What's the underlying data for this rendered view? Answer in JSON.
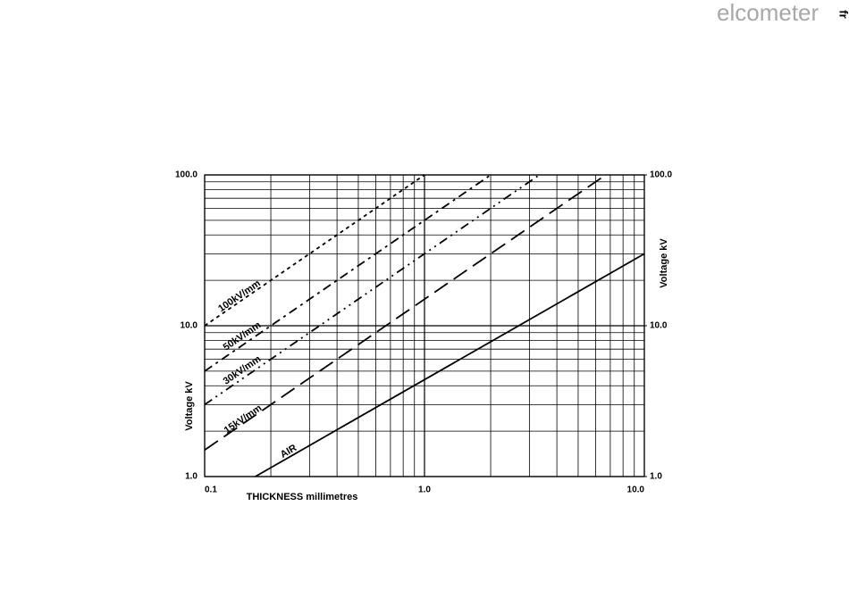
{
  "logo": "elcometer",
  "corner_label": "fr",
  "chart_data": {
    "type": "line",
    "log_x": true,
    "log_y": true,
    "grid": true,
    "xlabel": "THICKNESS millimetres",
    "ylabel": "Voltage kV",
    "y2label": "Voltage kV",
    "xlim": [
      0.1,
      10
    ],
    "ylim": [
      1,
      100
    ],
    "y2lim": [
      1,
      100
    ],
    "xticks": [
      0.1,
      {
        "value": 1,
        "label": "1.0"
      },
      {
        "value": 10,
        "label": "10.0"
      }
    ],
    "yticks": [
      {
        "value": 1,
        "label": "1.0"
      },
      {
        "value": 10,
        "label": "10.0"
      },
      {
        "value": 100,
        "label": "100.0"
      }
    ],
    "y2ticks": [
      {
        "value": 1,
        "label": "1.0"
      },
      {
        "value": 10,
        "label": "10.0"
      },
      {
        "value": 100,
        "label": "100.0"
      }
    ],
    "x_minor_ticks": [
      0.2,
      0.3,
      0.4,
      0.5,
      0.6,
      0.7,
      0.8,
      0.9,
      2,
      3,
      4,
      5,
      6,
      7,
      8,
      9
    ],
    "y_minor_ticks": [
      2,
      3,
      4,
      5,
      6,
      7,
      8,
      9,
      20,
      30,
      40,
      50,
      60,
      70,
      80,
      90
    ],
    "series": [
      {
        "name": "100kV/mm",
        "color": "#000000",
        "style": "short-dash",
        "x": [
          0.1,
          1
        ],
        "values": [
          10,
          100
        ]
      },
      {
        "name": "50kV/mm",
        "color": "#000000",
        "style": "dash-dot",
        "x": [
          0.1,
          2
        ],
        "values": [
          5,
          100
        ]
      },
      {
        "name": "30kV/mm",
        "color": "#000000",
        "style": "dash-dot-dot",
        "x": [
          0.1,
          3.33
        ],
        "values": [
          3,
          100
        ]
      },
      {
        "name": "15kV/mm",
        "color": "#000000",
        "style": "long-dash",
        "x": [
          0.1,
          6.67
        ],
        "values": [
          1.5,
          100
        ]
      },
      {
        "name": "AIR",
        "color": "#000000",
        "style": "solid",
        "x": [
          0.17,
          10
        ],
        "values": [
          1,
          30
        ]
      }
    ]
  }
}
